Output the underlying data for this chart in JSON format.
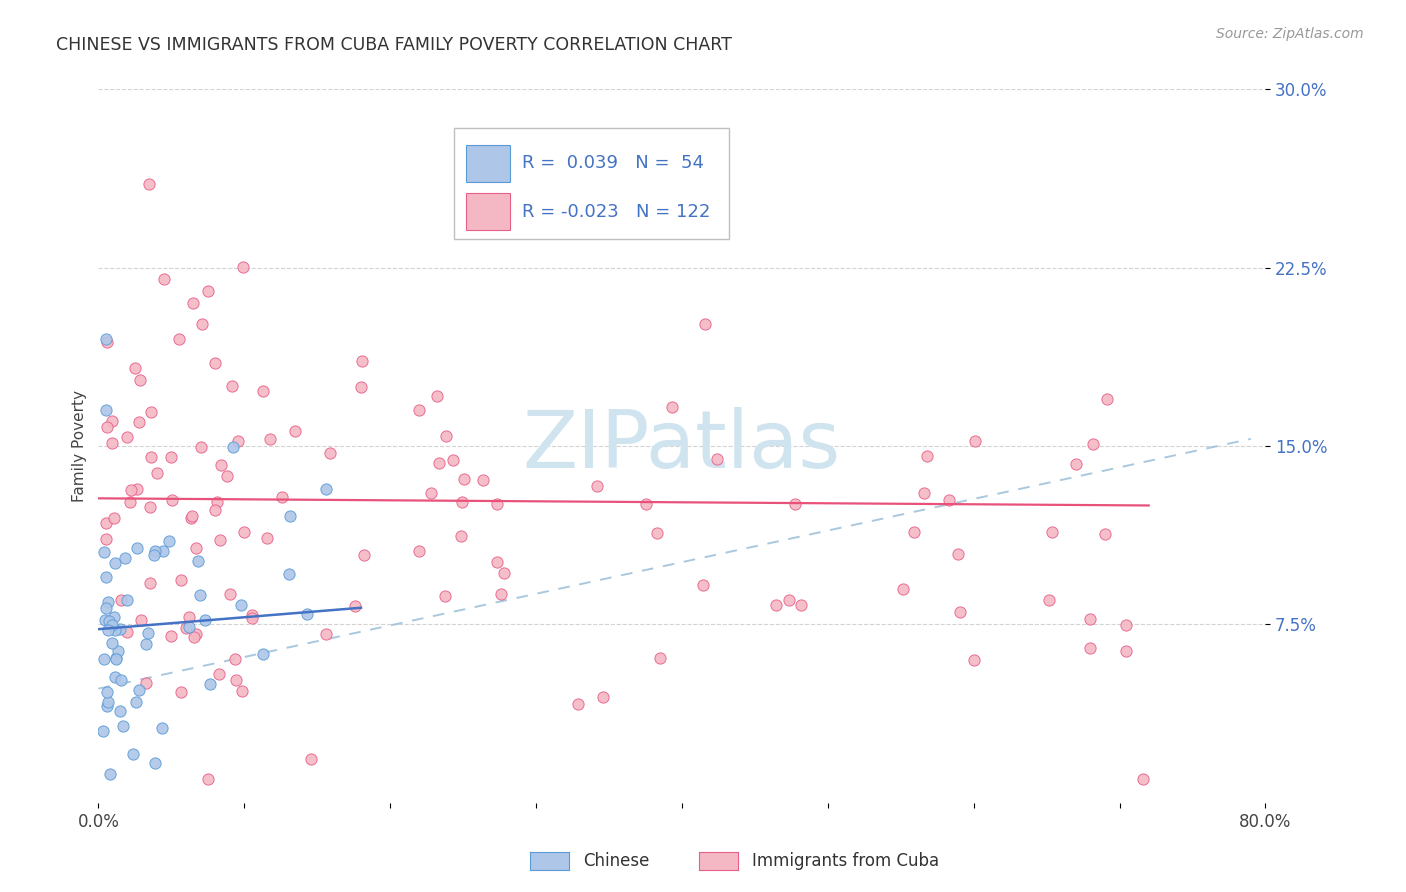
{
  "title": "CHINESE VS IMMIGRANTS FROM CUBA FAMILY POVERTY CORRELATION CHART",
  "source_text": "Source: ZipAtlas.com",
  "ylabel": "Family Poverty",
  "xlim": [
    0.0,
    0.8
  ],
  "ylim": [
    0.0,
    0.3
  ],
  "blue_color": "#aec6e8",
  "blue_edge_color": "#5b9bd5",
  "pink_color": "#f4b8c4",
  "pink_edge_color": "#e8608a",
  "blue_trend_color": "#4472c4",
  "pink_trend_color": "#e8527a",
  "dashed_trend_color": "#9bbfd8",
  "ytick_color": "#4472c4",
  "watermark_text": "ZIPatlas",
  "watermark_color": "#d0e4f0",
  "legend_r1_label": "R =  0.039",
  "legend_n1_label": "N =  54",
  "legend_r2_label": "R = -0.023",
  "legend_n2_label": "N = 122"
}
